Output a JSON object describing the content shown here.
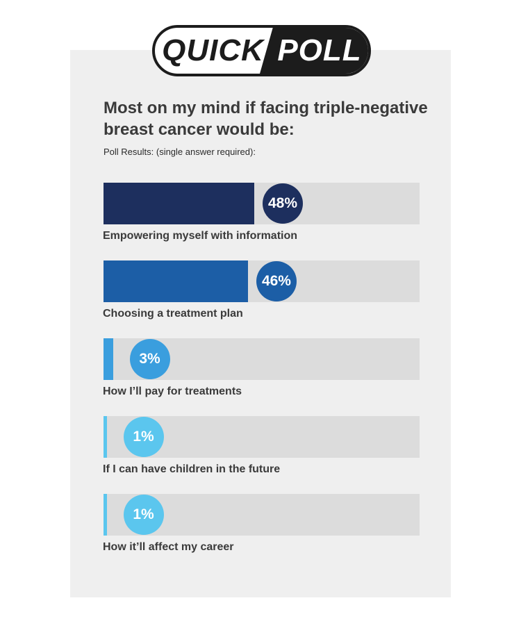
{
  "badge": {
    "left_text": "QUICK",
    "right_text": "POLL"
  },
  "chart_data": {
    "type": "bar",
    "title": "Most on my mind if facing triple-negative breast cancer would be:",
    "subtitle": "Poll Results: (single answer required):",
    "categories": [
      "Empowering myself with information",
      "Choosing a treatment plan",
      "How I’ll pay for treatments",
      "If I can have children in the future",
      "How it’ll affect my career"
    ],
    "values": [
      48,
      46,
      3,
      1,
      1
    ],
    "value_labels": [
      "48%",
      "46%",
      "3%",
      "1%",
      "1%"
    ],
    "colors": [
      "#1d2f5e",
      "#1c5ea6",
      "#3a9ede",
      "#5bc6ee",
      "#5bc6ee"
    ],
    "ylim": [
      0,
      100
    ],
    "orientation": "horizontal"
  }
}
